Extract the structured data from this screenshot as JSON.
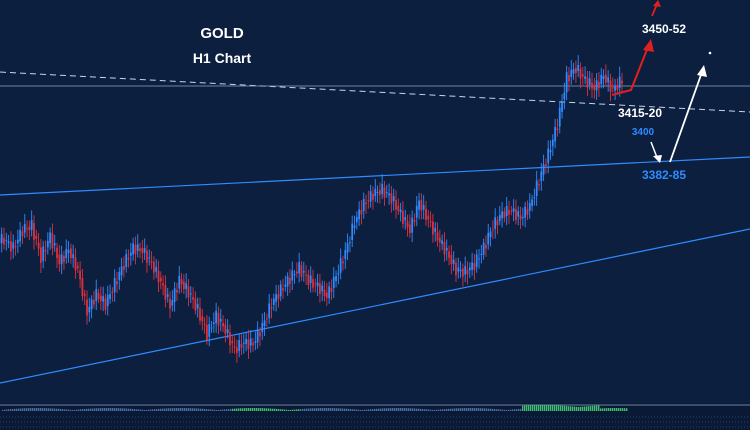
{
  "chart_data": {
    "type": "candlestick",
    "title": "GOLD",
    "subtitle": "H1 Chart",
    "series": [
      {
        "name": "price",
        "values": [
          3345,
          3341,
          3350,
          3352,
          3336,
          3347,
          3334,
          3340,
          3330,
          3309,
          3318,
          3313,
          3323,
          3333,
          3341,
          3340,
          3333,
          3324,
          3312,
          3325,
          3319,
          3310,
          3298,
          3307,
          3300,
          3290,
          3294,
          3293,
          3302,
          3313,
          3320,
          3326,
          3331,
          3325,
          3322,
          3317,
          3327,
          3339,
          3354,
          3363,
          3368,
          3370,
          3366,
          3358,
          3350,
          3364,
          3355,
          3346,
          3339,
          3330,
          3329,
          3333,
          3341,
          3352,
          3358,
          3360,
          3356,
          3362,
          3375,
          3388,
          3403,
          3426,
          3431,
          3425,
          3421,
          3427,
          3420,
          3425
        ]
      }
    ],
    "annotations": [
      {
        "text": "3450-52",
        "color": "#ffffff"
      },
      {
        "text": "3415-20",
        "color": "#ffffff"
      },
      {
        "text": "3400",
        "color": "#2f8bff"
      },
      {
        "text": "3382-85",
        "color": "#2f8bff"
      }
    ],
    "arrows": [
      {
        "direction": "up",
        "color": "#e02020"
      },
      {
        "direction": "down",
        "color": "#ffffff"
      },
      {
        "direction": "up",
        "color": "#ffffff"
      }
    ],
    "trendlines": [
      "upper-channel",
      "lower-channel",
      "descending-dashed"
    ],
    "background": "#0c1f3f",
    "up_color": "#2f8bff",
    "down_color": "#e0303a"
  }
}
